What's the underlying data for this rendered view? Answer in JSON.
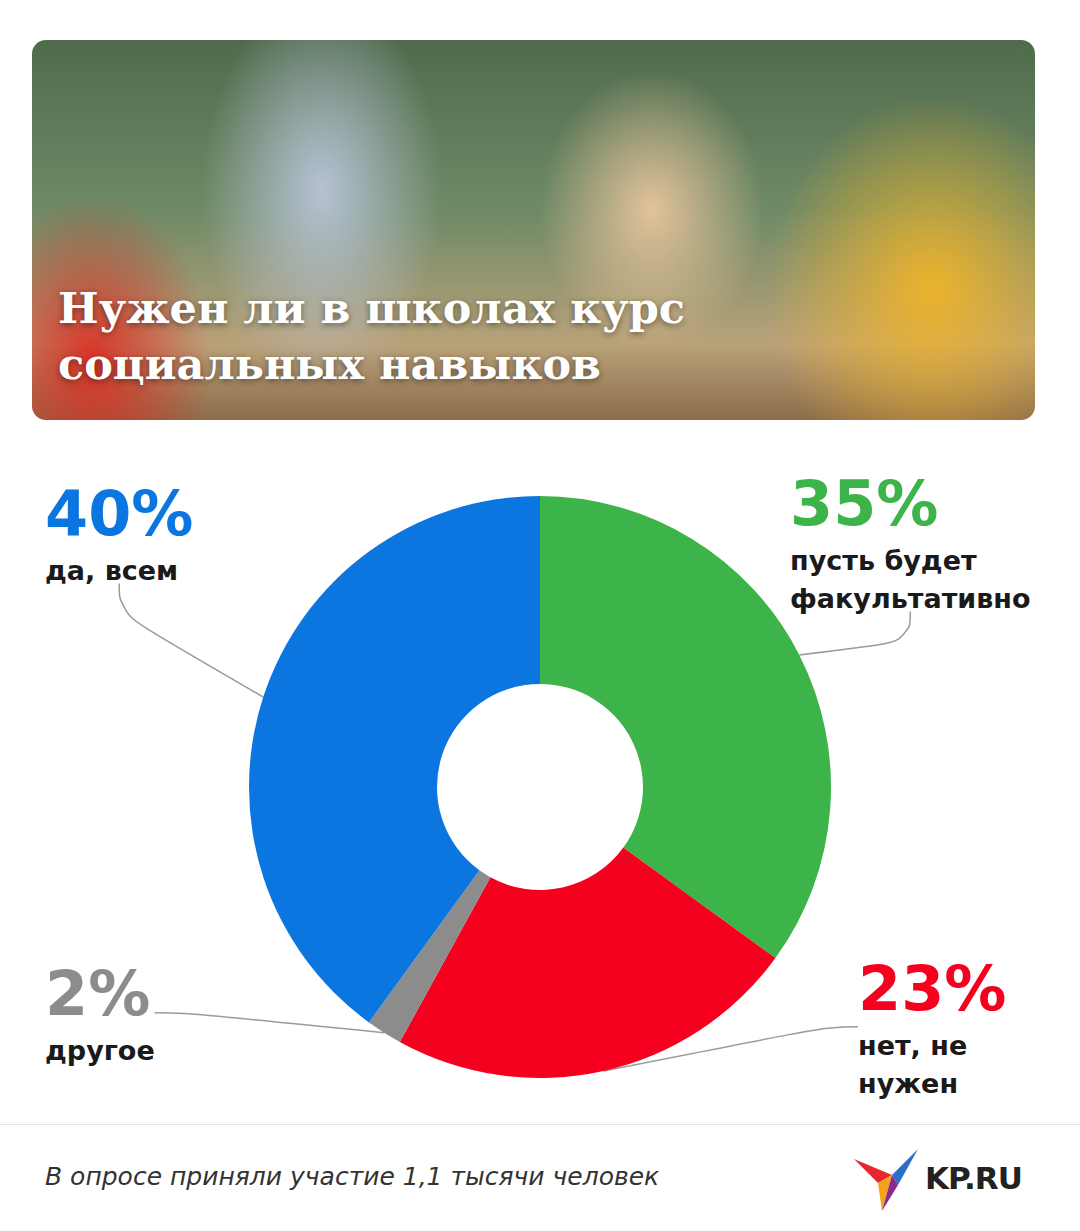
{
  "chart_data": {
    "type": "pie",
    "title": "Нужен ли в школах курс\nсоциальных навыков",
    "categories": [
      "пусть будет\nфакультативно",
      "нет, не\nнужен",
      "другое",
      "да, всем"
    ],
    "values": [
      35,
      23,
      2,
      40
    ],
    "value_labels": [
      "35%",
      "23%",
      "2%",
      "40%"
    ],
    "colors": [
      "#3cb44a",
      "#f5001e",
      "#8c8c8c",
      "#0c76e0"
    ],
    "data_labels": true,
    "annotations": [
      "В опросе приняли участие 1,1 тысячи человек",
      "KP.RU"
    ]
  }
}
